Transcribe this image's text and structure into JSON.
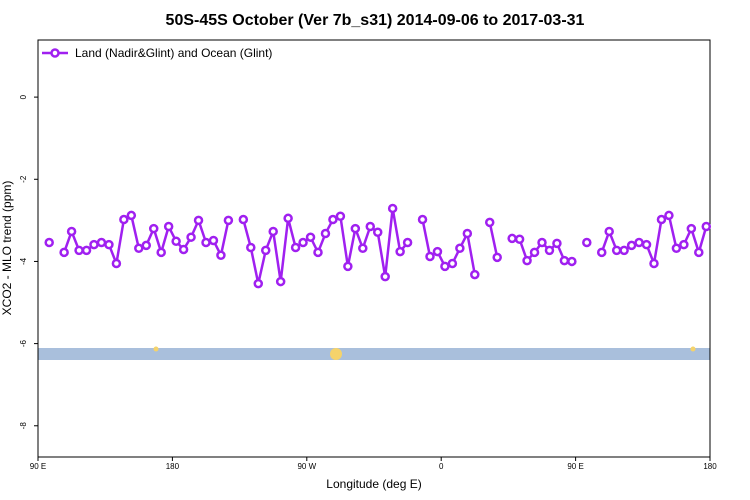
{
  "chart_data": {
    "type": "line",
    "title": "50S-45S October (Ver 7b_s31)   2014-09-06 to 2017-03-31",
    "xlabel": "Longitude (deg E)",
    "ylabel": "XCO2 - MLO trend (ppm)",
    "xlim": [
      90,
      540
    ],
    "ylim": [
      -8.76,
      1.39
    ],
    "xticks": [
      {
        "value": 90,
        "label": "90 E"
      },
      180,
      {
        "value": 270,
        "label": "90 W"
      },
      {
        "value": 360,
        "label": "0"
      },
      {
        "value": 450,
        "label": "90 E"
      },
      {
        "value": 540,
        "label": "180"
      }
    ],
    "yticks": [
      0,
      -2,
      -4,
      -6,
      -8
    ],
    "legend": "top-left",
    "x": [
      97.5,
      102.5,
      107.5,
      112.5,
      117.5,
      122.5,
      127.5,
      132.5,
      137.5,
      142.5,
      147.5,
      152.5,
      157.5,
      162.5,
      167.5,
      172.5,
      177.5,
      182.5,
      187.5,
      192.5,
      197.5,
      202.5,
      207.5,
      212.5,
      217.5,
      222.5,
      227.5,
      232.5,
      237.5,
      242.5,
      247.5,
      252.5,
      257.5,
      262.5,
      267.5,
      272.5,
      277.5,
      282.5,
      287.5,
      292.5,
      297.5,
      302.5,
      307.5,
      312.5,
      317.5,
      322.5,
      327.5,
      332.5,
      337.5,
      342.5,
      347.5,
      352.5,
      357.5,
      362.5,
      367.5,
      372.5,
      377.5,
      382.5,
      387.5,
      392.5,
      397.5,
      402.5,
      407.5,
      412.5,
      417.5,
      422.5,
      427.5,
      432.5,
      437.5,
      442.5,
      447.5,
      452.5,
      457.5,
      462.5,
      467.5,
      472.5,
      477.5,
      482.5,
      487.5,
      492.5,
      497.5,
      502.5,
      507.5,
      512.5,
      517.5,
      522.5,
      527.5,
      532.5,
      537.5
    ],
    "series": [
      {
        "name": "Land (Nadir&Glint) and Ocean (Glint)",
        "color": "#a020f0",
        "values": [
          -3.54,
          null,
          -3.78,
          -3.27,
          -3.73,
          -3.73,
          -3.59,
          -3.54,
          -3.59,
          -4.05,
          -2.98,
          -2.88,
          -3.68,
          -3.61,
          -3.2,
          -3.78,
          -3.15,
          -3.51,
          -3.71,
          -3.41,
          -3.0,
          -3.54,
          -3.49,
          -3.85,
          -3.0,
          null,
          -2.98,
          -3.66,
          -4.54,
          -3.73,
          -3.27,
          -4.49,
          -2.95,
          -3.66,
          -3.54,
          -3.41,
          -3.78,
          -3.32,
          -2.98,
          -2.9,
          -4.12,
          -3.2,
          -3.68,
          -3.15,
          -3.29,
          -4.37,
          -2.71,
          -3.76,
          -3.54,
          null,
          -2.98,
          -3.88,
          -3.76,
          -4.12,
          -4.05,
          -3.68,
          -3.32,
          -4.32,
          null,
          -3.05,
          -3.9,
          null,
          -3.44,
          -3.46,
          -3.98,
          -3.78,
          -3.54,
          -3.73,
          -3.56,
          -3.98,
          -4.0,
          null,
          -3.54,
          null,
          -3.78,
          -3.27,
          -3.73,
          -3.73,
          -3.61,
          -3.54,
          -3.59,
          -4.05,
          -2.98,
          -2.88,
          -3.68,
          -3.59,
          -3.2,
          -3.78,
          -3.15
        ]
      }
    ]
  }
}
